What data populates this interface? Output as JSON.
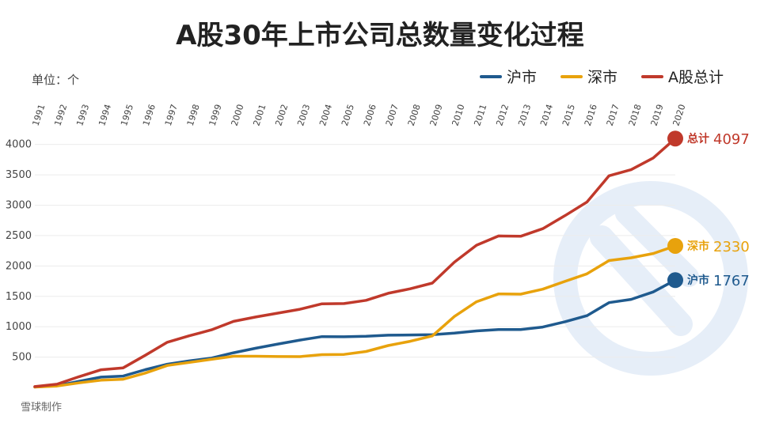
{
  "title": "A股30年上市公司总数量变化过程",
  "unit_label": "单位：个",
  "credit": "雪球制作",
  "colors": {
    "background": "#ffffff",
    "watermark": "#e6eef8",
    "grid": "#ececec"
  },
  "chart_data": {
    "type": "line",
    "title": "A股30年上市公司总数量变化过程",
    "x": [
      "1991",
      "1992",
      "1993",
      "1994",
      "1995",
      "1996",
      "1997",
      "1998",
      "1999",
      "2000",
      "2001",
      "2002",
      "2003",
      "2004",
      "2005",
      "2006",
      "2007",
      "2008",
      "2009",
      "2010",
      "2011",
      "2012",
      "2013",
      "2014",
      "2015",
      "2016",
      "2017",
      "2018",
      "2019",
      "2020"
    ],
    "ylim": [
      0,
      4100
    ],
    "yticks": [
      500,
      1000,
      1500,
      2000,
      2500,
      3000,
      3500,
      4000
    ],
    "grid": true,
    "legend_position": "top-right",
    "series": [
      {
        "name": "沪市",
        "color": "#1f5a8e",
        "values": [
          8,
          29,
          101,
          171,
          188,
          293,
          383,
          438,
          484,
          572,
          646,
          715,
          780,
          837,
          834,
          842,
          860,
          864,
          870,
          894,
          931,
          954,
          953,
          995,
          1081,
          1182,
          1396,
          1450,
          1572,
          1767
        ],
        "end_label": {
          "name": "沪市",
          "value": "1767"
        }
      },
      {
        "name": "深市",
        "color": "#e8a20c",
        "values": [
          6,
          24,
          76,
          120,
          135,
          237,
          362,
          413,
          463,
          514,
          514,
          509,
          507,
          540,
          544,
          592,
          690,
          760,
          848,
          1169,
          1411,
          1540,
          1536,
          1618,
          1746,
          1870,
          2089,
          2134,
          2205,
          2330
        ],
        "end_label": {
          "name": "深市",
          "value": "2330"
        }
      },
      {
        "name": "A股总计",
        "color": "#c0392b",
        "values": [
          14,
          53,
          177,
          291,
          323,
          530,
          745,
          851,
          949,
          1088,
          1160,
          1224,
          1287,
          1377,
          1381,
          1434,
          1550,
          1625,
          1718,
          2063,
          2342,
          2494,
          2489,
          2613,
          2827,
          3052,
          3485,
          3584,
          3777,
          4097
        ],
        "end_label": {
          "name": "总计",
          "value": "4097"
        }
      }
    ]
  }
}
